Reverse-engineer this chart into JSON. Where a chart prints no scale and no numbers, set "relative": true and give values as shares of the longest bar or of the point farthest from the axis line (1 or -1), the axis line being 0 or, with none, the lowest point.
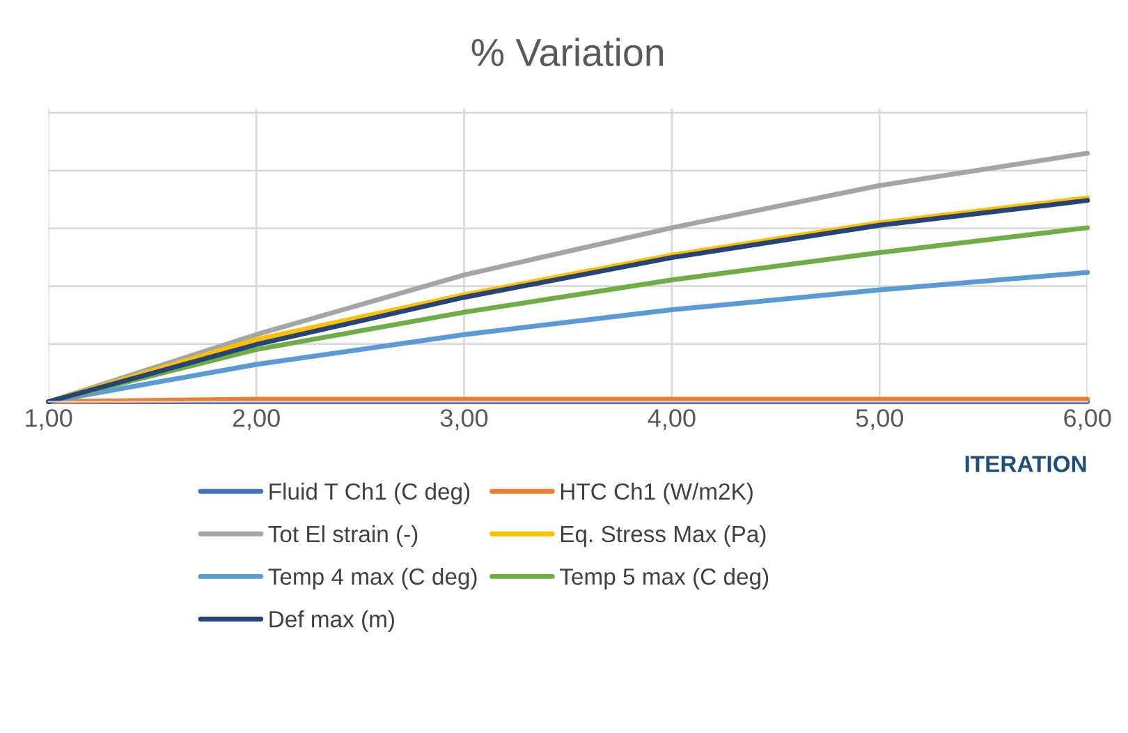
{
  "chart_data": {
    "type": "line",
    "title": "% Variation",
    "xlabel": "ITERATION",
    "relative": true,
    "x": [
      1,
      2,
      3,
      4,
      5,
      6
    ],
    "xlim": [
      1,
      6
    ],
    "xticks": [
      {
        "value": 1,
        "label": "1,00"
      },
      {
        "value": 2,
        "label": "2,00"
      },
      {
        "value": 3,
        "label": "3,00"
      },
      {
        "value": 4,
        "label": "4,00"
      },
      {
        "value": 5,
        "label": "5,00"
      },
      {
        "value": 6,
        "label": "6,00"
      }
    ],
    "grid": true,
    "legend": "bottom",
    "marker": "none",
    "line_style": "solid",
    "series": [
      {
        "name": "Fluid T Ch1 (C deg)",
        "color": "#4472c4",
        "values": [
          0,
          0,
          0,
          0,
          0,
          0
        ]
      },
      {
        "name": "HTC Ch1 (W/m2K)",
        "color": "#ed7d31",
        "values": [
          0,
          0.01,
          0.01,
          0.01,
          0.01,
          0.01
        ]
      },
      {
        "name": "Tot El strain (-)",
        "color": "#a5a5a5",
        "values": [
          0,
          0.27,
          0.51,
          0.7,
          0.87,
          1
        ]
      },
      {
        "name": "Eq. Stress Max (Pa)",
        "color": "#ffc000",
        "values": [
          0,
          0.25,
          0.43,
          0.59,
          0.72,
          0.82
        ]
      },
      {
        "name": "Temp 4 max (C deg)",
        "color": "#5b9bd5",
        "values": [
          0,
          0.15,
          0.27,
          0.37,
          0.45,
          0.52
        ]
      },
      {
        "name": "Temp 5 max (C deg)",
        "color": "#70ad47",
        "values": [
          0,
          0.21,
          0.36,
          0.49,
          0.6,
          0.7
        ]
      },
      {
        "name": "Def max (m)",
        "color": "#264478",
        "values": [
          0,
          0.23,
          0.42,
          0.58,
          0.71,
          0.81
        ]
      }
    ]
  }
}
